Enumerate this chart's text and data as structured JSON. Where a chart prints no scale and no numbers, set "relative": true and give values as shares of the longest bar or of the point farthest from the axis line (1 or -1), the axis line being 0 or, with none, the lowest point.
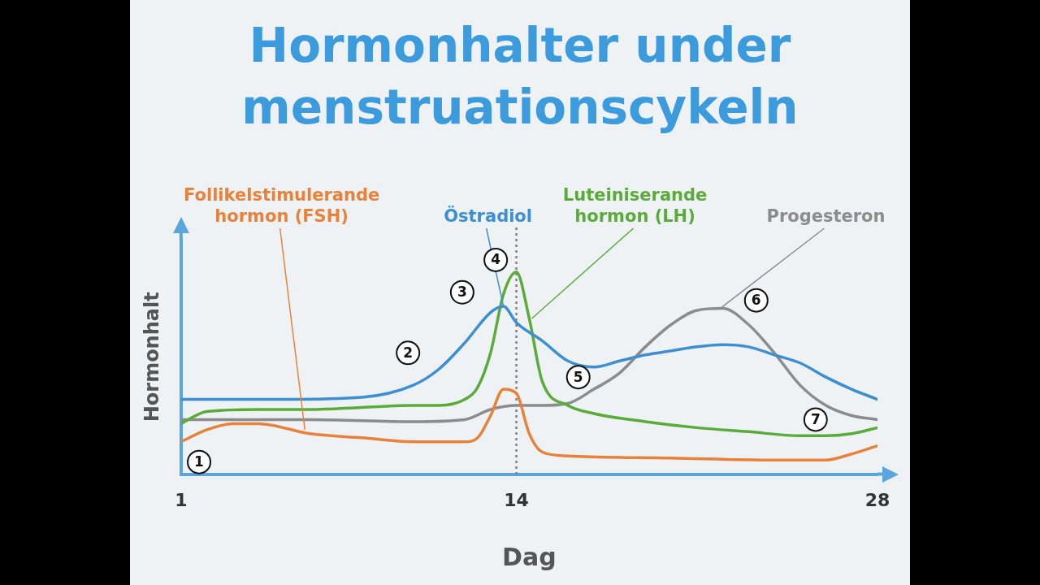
{
  "chart_data": {
    "type": "line",
    "title": "Hormonhalter under menstruationscykeln",
    "xlabel": "Dag",
    "ylabel": "Hormonhalt",
    "relative": true,
    "xlim": [
      1,
      28
    ],
    "xticks": [
      1,
      14,
      28
    ],
    "tick_labels": "x",
    "grid": false,
    "legend": false,
    "marker": "none",
    "line_style": "solid",
    "ref_lines": [
      {
        "axis": "x",
        "value": 14,
        "color": "#808080",
        "line_style": "dotted"
      }
    ],
    "annotations": [
      {
        "text": "1",
        "x": 1.7,
        "y": 0.06
      },
      {
        "text": "2",
        "x": 9.8,
        "y": 0.6
      },
      {
        "text": "3",
        "x": 11.9,
        "y": 0.9
      },
      {
        "text": "4",
        "x": 13.2,
        "y": 1.06
      },
      {
        "text": "5",
        "x": 16.4,
        "y": 0.48
      },
      {
        "text": "6",
        "x": 23.3,
        "y": 0.86
      },
      {
        "text": "7",
        "x": 25.6,
        "y": 0.27
      }
    ],
    "series": [
      {
        "name": "Follikelstimulerande hormon (FSH)",
        "color": "#e8823a",
        "x": [
          1,
          2,
          3,
          4,
          6,
          8,
          10,
          12,
          12.5,
          13,
          13.5,
          14,
          14.5,
          15,
          16,
          20,
          24,
          26,
          27,
          28
        ],
        "values": [
          0.16,
          0.22,
          0.25,
          0.25,
          0.2,
          0.18,
          0.16,
          0.16,
          0.18,
          0.29,
          0.42,
          0.4,
          0.2,
          0.11,
          0.09,
          0.08,
          0.07,
          0.07,
          0.1,
          0.14
        ]
      },
      {
        "name": "Östradiol",
        "color": "#3d8fd1",
        "x": [
          1,
          5,
          8,
          10,
          11,
          12,
          13,
          13.5,
          14,
          15,
          16,
          17,
          18,
          19,
          20,
          21,
          22,
          23,
          24,
          25,
          26,
          27,
          28
        ],
        "values": [
          0.37,
          0.37,
          0.38,
          0.44,
          0.52,
          0.65,
          0.8,
          0.83,
          0.75,
          0.66,
          0.56,
          0.53,
          0.56,
          0.59,
          0.61,
          0.63,
          0.64,
          0.63,
          0.59,
          0.55,
          0.48,
          0.42,
          0.37
        ]
      },
      {
        "name": "Luteiniserande hormon (LH)",
        "color": "#5aab3a",
        "x": [
          1,
          2,
          4,
          6,
          8,
          10,
          11,
          12,
          12.5,
          13,
          13.5,
          14,
          14.5,
          15,
          16,
          17,
          19,
          21,
          23,
          25,
          26,
          27,
          28
        ],
        "values": [
          0.25,
          0.31,
          0.32,
          0.32,
          0.33,
          0.34,
          0.34,
          0.37,
          0.43,
          0.6,
          0.89,
          1,
          0.77,
          0.46,
          0.34,
          0.3,
          0.26,
          0.23,
          0.21,
          0.19,
          0.19,
          0.2,
          0.23
        ]
      },
      {
        "name": "Progesteron",
        "color": "#8c8c8c",
        "x": [
          1,
          6,
          10,
          12,
          13,
          14,
          15,
          16,
          17,
          18,
          19,
          20,
          21,
          22,
          23,
          24,
          25,
          26,
          27,
          28
        ],
        "values": [
          0.27,
          0.27,
          0.26,
          0.27,
          0.32,
          0.34,
          0.34,
          0.35,
          0.42,
          0.5,
          0.63,
          0.74,
          0.81,
          0.82,
          0.74,
          0.6,
          0.44,
          0.34,
          0.29,
          0.27
        ]
      }
    ]
  }
}
